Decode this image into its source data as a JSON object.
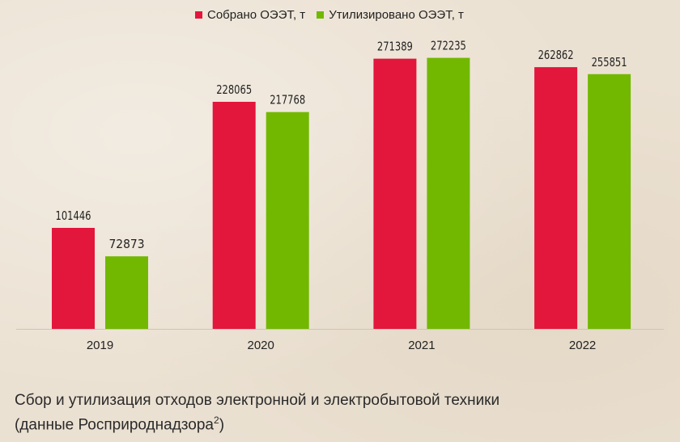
{
  "chart_data": {
    "type": "bar",
    "categories": [
      "2019",
      "2020",
      "2021",
      "2022"
    ],
    "series": [
      {
        "name": "Собрано ОЭЭТ, т",
        "color": "#e3163c",
        "values": [
          101446,
          228065,
          271389,
          262862
        ]
      },
      {
        "name": "Утилизировано ОЭЭТ, т",
        "color": "#72b800",
        "values": [
          72873,
          217768,
          272235,
          255851
        ]
      }
    ],
    "ylim": [
      0,
      280000
    ],
    "grid": false,
    "legend": "top-center"
  },
  "caption": {
    "line1": "Сбор и утилизация отходов электронной и электробытовой техники",
    "line2_prefix": "(данные Росприроднадзора",
    "line2_sup": "2",
    "line2_suffix": ")"
  }
}
